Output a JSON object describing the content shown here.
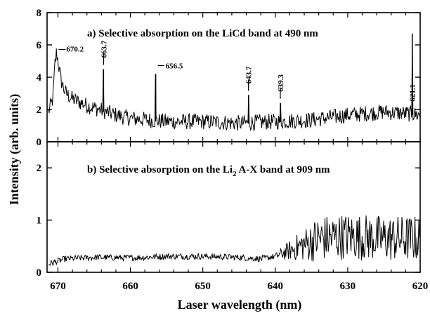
{
  "chart_data": {
    "type": "line",
    "xlabel": "Laser wavelength (nm)",
    "ylabel": "Intensity (arb. units)",
    "x_ticks": [
      670,
      660,
      650,
      640,
      630,
      620
    ],
    "xlim": [
      671.5,
      620
    ],
    "colors": {
      "line": "#000000",
      "axis": "#000000",
      "background": "#ffffff"
    },
    "panels": [
      {
        "title_main": "a)  Selective absorption on the LiCd band at 490 nm",
        "ylim": [
          0,
          8
        ],
        "y_ticks": [
          0,
          2,
          4,
          6,
          8
        ],
        "series": {
          "baseline": [
            [
              671.3,
              1.8
            ],
            [
              670.7,
              2.6
            ],
            [
              670.4,
              4.8
            ],
            [
              670.2,
              5.5
            ],
            [
              670.0,
              5.0
            ],
            [
              669.6,
              3.8
            ],
            [
              669.0,
              3.0
            ],
            [
              668.0,
              2.6
            ],
            [
              666.0,
              2.2
            ],
            [
              664.0,
              1.9
            ],
            [
              662.0,
              1.6
            ],
            [
              660.0,
              1.4
            ],
            [
              655.0,
              1.2
            ],
            [
              650.0,
              1.2
            ],
            [
              645.0,
              1.1
            ],
            [
              640.0,
              1.2
            ],
            [
              635.0,
              1.3
            ],
            [
              630.0,
              1.6
            ],
            [
              625.0,
              1.8
            ],
            [
              622.0,
              1.7
            ],
            [
              620.0,
              1.6
            ]
          ],
          "noise_amplitude": 0.5,
          "peaks": [
            {
              "x": 663.7,
              "y": 4.5,
              "label": "663.7"
            },
            {
              "x": 656.5,
              "y": 4.2,
              "label": "656.5"
            },
            {
              "x": 643.7,
              "y": 2.9,
              "label": "643.7"
            },
            {
              "x": 639.3,
              "y": 2.4,
              "label": "639.3"
            },
            {
              "x": 621.1,
              "y": 6.7,
              "label": "621.1"
            }
          ]
        },
        "annotations": [
          {
            "x": 670.2,
            "y": 5.5,
            "label": "670.2"
          },
          {
            "x": 663.7,
            "y": 4.5,
            "label": "663.7"
          },
          {
            "x": 656.5,
            "y": 4.2,
            "label": "656.5"
          },
          {
            "x": 643.7,
            "y": 2.9,
            "label": "643.7"
          },
          {
            "x": 639.3,
            "y": 2.4,
            "label": "639.3"
          },
          {
            "x": 621.1,
            "y": 1.8,
            "label": "621.1"
          }
        ]
      },
      {
        "title_main": "b)  Selective absorption on the Li",
        "title_sub": "2",
        "title_rest": " A-X band at 909 nm",
        "ylim": [
          0,
          2.5
        ],
        "y_ticks": [
          0,
          1,
          2
        ],
        "series": {
          "baseline": [
            [
              671.3,
              0.15
            ],
            [
              669.0,
              0.25
            ],
            [
              665.0,
              0.28
            ],
            [
              660.0,
              0.27
            ],
            [
              655.0,
              0.3
            ],
            [
              650.0,
              0.3
            ],
            [
              645.0,
              0.28
            ],
            [
              642.0,
              0.25
            ],
            [
              640.0,
              0.3
            ],
            [
              638.0,
              0.4
            ],
            [
              636.0,
              0.5
            ],
            [
              634.0,
              0.6
            ],
            [
              630.0,
              0.65
            ],
            [
              625.0,
              0.6
            ],
            [
              620.0,
              0.6
            ]
          ],
          "noise_amplitude": 0.06,
          "noise_growth_start": 640,
          "noise_amplitude_high": 0.45
        }
      }
    ]
  }
}
